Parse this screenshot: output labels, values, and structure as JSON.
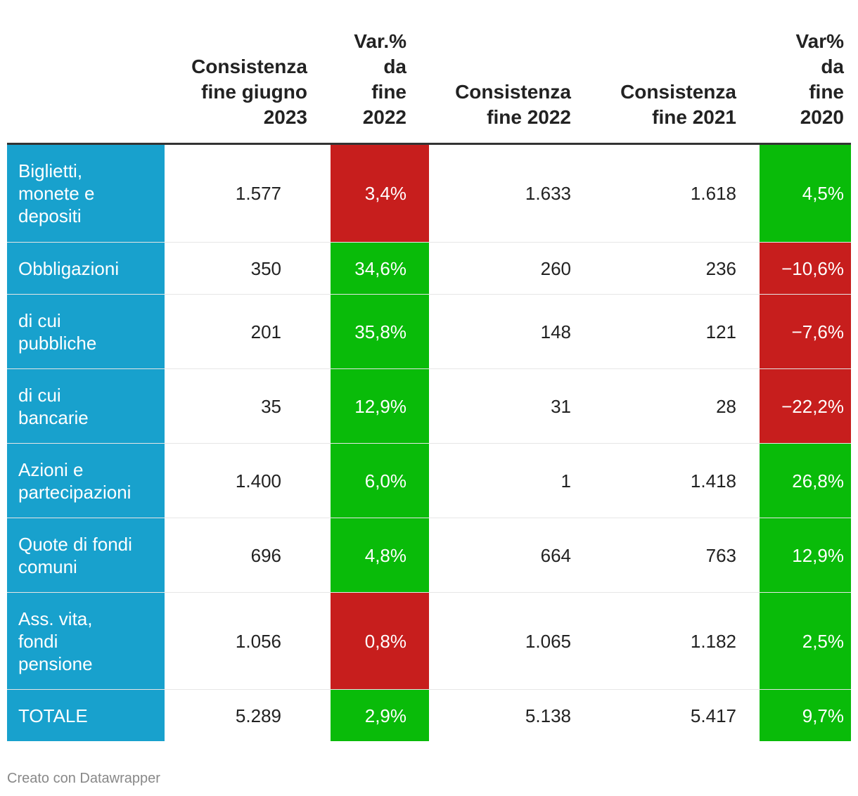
{
  "chart_data": {
    "type": "table",
    "columns": [
      "",
      "Consistenza\nfine giugno\n2023",
      "Var.%\nda\nfine\n2022",
      "Consistenza\nfine 2022",
      "Consistenza\nfine 2021",
      "Var%\nda\nfine\n2020"
    ],
    "rows": [
      {
        "label": "Biglietti,\nmonete e\ndepositi",
        "v2023": "1.577",
        "var2022": "3,4%",
        "v2022": "1.633",
        "v2021": "1.618",
        "var2020": "4,5%",
        "var2022_color": "#c71e1d",
        "var2020_color": "#09bb09"
      },
      {
        "label": "Obbligazioni",
        "v2023": "350",
        "var2022": "34,6%",
        "v2022": "260",
        "v2021": "236",
        "var2020": "−10,6%",
        "var2022_color": "#09bb09",
        "var2020_color": "#c71e1d"
      },
      {
        "label": "di cui\npubbliche",
        "v2023": "201",
        "var2022": "35,8%",
        "v2022": "148",
        "v2021": "121",
        "var2020": "−7,6%",
        "var2022_color": "#09bb09",
        "var2020_color": "#c71e1d"
      },
      {
        "label": "di cui\nbancarie",
        "v2023": "35",
        "var2022": "12,9%",
        "v2022": "31",
        "v2021": "28",
        "var2020": "−22,2%",
        "var2022_color": "#09bb09",
        "var2020_color": "#c71e1d"
      },
      {
        "label": "Azioni e\npartecipazioni",
        "v2023": "1.400",
        "var2022": "6,0%",
        "v2022": "1",
        "v2021": "1.418",
        "var2020": "26,8%",
        "var2022_color": "#09bb09",
        "var2020_color": "#09bb09"
      },
      {
        "label": "Quote di fondi\ncomuni",
        "v2023": "696",
        "var2022": "4,8%",
        "v2022": "664",
        "v2021": "763",
        "var2020": "12,9%",
        "var2022_color": "#09bb09",
        "var2020_color": "#09bb09"
      },
      {
        "label": "Ass. vita,\nfondi\npensione",
        "v2023": "1.056",
        "var2022": "0,8%",
        "v2022": "1.065",
        "v2021": "1.182",
        "var2020": "2,5%",
        "var2022_color": "#c71e1d",
        "var2020_color": "#09bb09"
      },
      {
        "label": "TOTALE",
        "v2023": "5.289",
        "var2022": "2,9%",
        "v2022": "5.138",
        "v2021": "5.417",
        "var2020": "9,7%",
        "var2022_color": "#09bb09",
        "var2020_color": "#09bb09"
      }
    ],
    "label_color": "#18a1cd"
  },
  "footer": "Creato con Datawrapper"
}
